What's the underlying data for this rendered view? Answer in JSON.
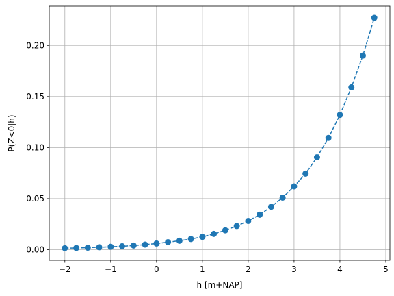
{
  "chart_data": {
    "type": "line",
    "title": "",
    "xlabel": "h [m+NAP]",
    "ylabel": "P(Z<0|h)",
    "xlim": [
      -2.34,
      5.09
    ],
    "ylim": [
      -0.0104,
      0.2384
    ],
    "grid": true,
    "line_style": "dashed",
    "marker": "circle",
    "color": "#1f77b4",
    "x_ticks": [
      -2,
      -1,
      0,
      1,
      2,
      3,
      4,
      5
    ],
    "x_tick_labels": [
      "−2",
      "−1",
      "0",
      "1",
      "2",
      "3",
      "4",
      "5"
    ],
    "y_ticks": [
      0.0,
      0.05,
      0.1,
      0.15,
      0.2
    ],
    "y_tick_labels": [
      "0.00",
      "0.05",
      "0.10",
      "0.15",
      "0.20"
    ],
    "series": [
      {
        "x": [
          -2.0,
          -1.75,
          -1.5,
          -1.25,
          -1.0,
          -0.75,
          -0.5,
          -0.25,
          0.0,
          0.25,
          0.5,
          0.75,
          1.0,
          1.25,
          1.5,
          1.75,
          2.0,
          2.25,
          2.5,
          2.75,
          3.0,
          3.25,
          3.5,
          3.75,
          4.0,
          4.25,
          4.5,
          4.75
        ],
        "y": [
          0.0015,
          0.0017,
          0.002,
          0.0024,
          0.0029,
          0.0034,
          0.0041,
          0.005,
          0.0061,
          0.0074,
          0.0088,
          0.0105,
          0.0126,
          0.0155,
          0.019,
          0.0232,
          0.0282,
          0.0343,
          0.042,
          0.051,
          0.062,
          0.0745,
          0.0905,
          0.1095,
          0.132,
          0.159,
          0.19,
          0.227
        ]
      }
    ]
  }
}
